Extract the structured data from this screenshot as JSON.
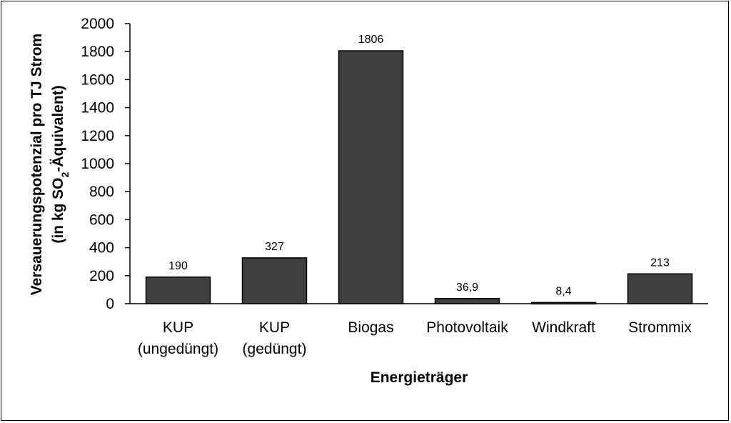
{
  "chart_data": {
    "type": "bar",
    "categories": [
      [
        "KUP",
        "(ungedüngt)"
      ],
      [
        "KUP",
        "(gedüngt)"
      ],
      [
        "Biogas"
      ],
      [
        "Photovoltaik"
      ],
      [
        "Windkraft"
      ],
      [
        "Strommix"
      ]
    ],
    "values": [
      190,
      327,
      1806,
      36.9,
      8.4,
      213
    ],
    "value_labels": [
      "190",
      "327",
      "1806",
      "36,9",
      "8,4",
      "213"
    ],
    "y_ticks": [
      0,
      200,
      400,
      600,
      800,
      1000,
      1200,
      1400,
      1600,
      1800,
      2000
    ],
    "ylim": [
      0,
      2000
    ],
    "xlabel": "Energieträger",
    "ylabel_line1": "Versauerungspotenzial pro TJ Strom",
    "ylabel_line2_prefix": "(in kg SO",
    "ylabel_subscript": "2",
    "ylabel_line2_suffix": "-Äquivalent)",
    "bar_color": "#3f3f3f",
    "grid": false,
    "legend": "none"
  }
}
